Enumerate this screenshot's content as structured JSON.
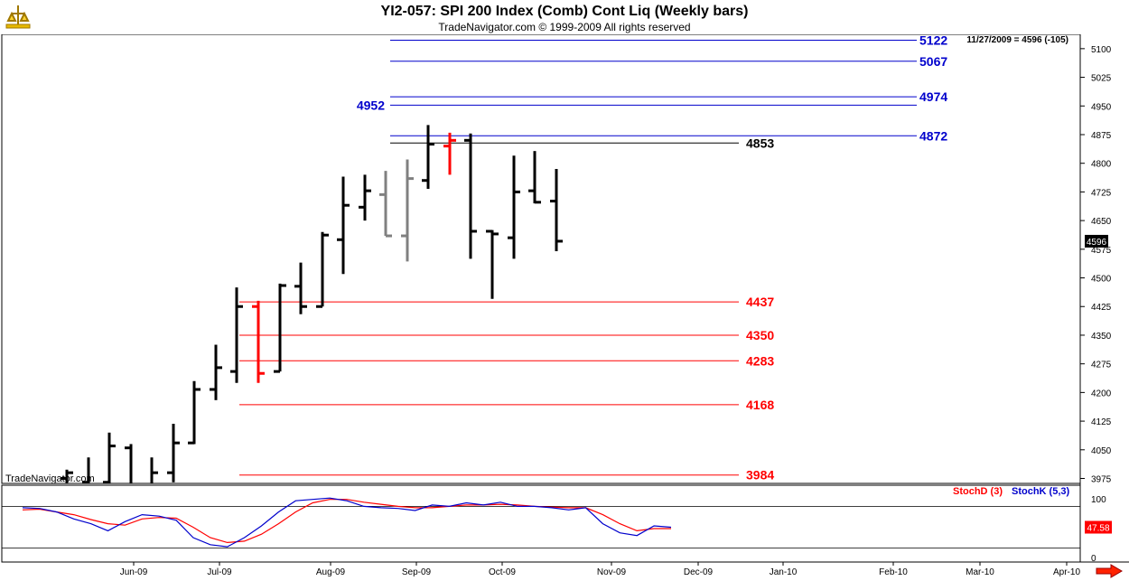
{
  "header": {
    "title": "YI2-057:  SPI 200 Index (Comb) Cont Liq  (Weekly bars)",
    "subtitle": "TradeNavigator.com © 1999-2009 All rights reserved"
  },
  "colors": {
    "up": "#000000",
    "gray": "#808080",
    "red": "#ff0000",
    "blue": "#0000cc",
    "green": "#00aa00"
  },
  "chart_data": {
    "type": "bar",
    "watermark": "TradeNavigator.com",
    "price_readout": "11/27/2009 = 4596 (-105)",
    "last_price_label": "4596",
    "y_ticks": [
      "5100",
      "5025",
      "4950",
      "4875",
      "4800",
      "4725",
      "4650",
      "4575",
      "4500",
      "4425",
      "4350",
      "4275",
      "4200",
      "4125",
      "4050",
      "3975"
    ],
    "x_labels": [
      "Jun-09",
      "Jul-09",
      "Aug-09",
      "Sep-09",
      "Oct-09",
      "Nov-09",
      "Dec-09",
      "Jan-10",
      "Feb-10",
      "Mar-10",
      "Apr-10"
    ],
    "bars": [
      {
        "high": 3998,
        "low": 3960,
        "open": 3975,
        "close": 3990,
        "color": "#000000"
      },
      {
        "high": 4030,
        "low": 3960,
        "open": 3965,
        "close": 3960,
        "color": "#000000"
      },
      {
        "high": 4095,
        "low": 3960,
        "open": 3965,
        "close": 4060,
        "color": "#000000"
      },
      {
        "high": 4065,
        "low": 3960,
        "open": 4055,
        "close": 3960,
        "color": "#000000"
      },
      {
        "high": 4030,
        "low": 3960,
        "open": 3960,
        "close": 3990,
        "color": "#000000"
      },
      {
        "high": 4118,
        "low": 3965,
        "open": 3990,
        "close": 4068,
        "color": "#000000"
      },
      {
        "high": 4230,
        "low": 4065,
        "open": 4068,
        "close": 4208,
        "color": "#000000"
      },
      {
        "high": 4325,
        "low": 4180,
        "open": 4208,
        "close": 4265,
        "color": "#000000"
      },
      {
        "high": 4475,
        "low": 4225,
        "open": 4255,
        "close": 4425,
        "color": "#000000"
      },
      {
        "high": 4440,
        "low": 4225,
        "open": 4425,
        "close": 4250,
        "color": "#ff0000"
      },
      {
        "high": 4485,
        "low": 4255,
        "open": 4255,
        "close": 4480,
        "color": "#000000"
      },
      {
        "high": 4540,
        "low": 4405,
        "open": 4478,
        "close": 4425,
        "color": "#000000"
      },
      {
        "high": 4620,
        "low": 4425,
        "open": 4425,
        "close": 4612,
        "color": "#000000"
      },
      {
        "high": 4765,
        "low": 4510,
        "open": 4600,
        "close": 4690,
        "color": "#000000"
      },
      {
        "high": 4770,
        "low": 4650,
        "open": 4685,
        "close": 4728,
        "color": "#000000"
      },
      {
        "high": 4780,
        "low": 4610,
        "open": 4718,
        "close": 4610,
        "color": "#808080"
      },
      {
        "high": 4810,
        "low": 4543,
        "open": 4610,
        "close": 4760,
        "color": "#808080"
      },
      {
        "high": 4900,
        "low": 4733,
        "open": 4755,
        "close": 4850,
        "color": "#000000"
      },
      {
        "high": 4880,
        "low": 4770,
        "open": 4845,
        "close": 4860,
        "color": "#ff0000"
      },
      {
        "high": 4878,
        "low": 4550,
        "open": 4860,
        "close": 4622,
        "color": "#000000"
      },
      {
        "high": 4625,
        "low": 4445,
        "open": 4622,
        "close": 4615,
        "color": "#000000"
      },
      {
        "high": 4820,
        "low": 4550,
        "open": 4605,
        "close": 4725,
        "color": "#000000"
      },
      {
        "high": 4832,
        "low": 4695,
        "open": 4728,
        "close": 4698,
        "color": "#000000"
      },
      {
        "high": 4785,
        "low": 4570,
        "open": 4701,
        "close": 4596,
        "color": "#000000"
      }
    ],
    "levels": [
      {
        "value": 5122,
        "label": "5122",
        "color": "#0000cc",
        "side": "right"
      },
      {
        "value": 5067,
        "label": "5067",
        "color": "#0000cc",
        "side": "right"
      },
      {
        "value": 4974,
        "label": "4974",
        "color": "#0000cc",
        "side": "right"
      },
      {
        "value": 4952,
        "label": "4952",
        "color": "#0000cc",
        "side": "left"
      },
      {
        "value": 4872,
        "label": "4872",
        "color": "#0000cc",
        "side": "right"
      },
      {
        "value": 4853,
        "label": "4853",
        "color": "#000000",
        "side": "mid"
      },
      {
        "value": 4437,
        "label": "4437",
        "color": "#ff0000",
        "side": "mid"
      },
      {
        "value": 4350,
        "label": "4350",
        "color": "#ff0000",
        "side": "mid"
      },
      {
        "value": 4283,
        "label": "4283",
        "color": "#ff0000",
        "side": "mid"
      },
      {
        "value": 4168,
        "label": "4168",
        "color": "#ff0000",
        "side": "mid"
      },
      {
        "value": 3984,
        "label": "3984",
        "color": "#ff0000",
        "side": "mid"
      }
    ],
    "stoch": {
      "legend": [
        {
          "name": "StochD (3)",
          "color": "#ff0000"
        },
        {
          "name": "StochK (5,3)",
          "color": "#0000cc"
        }
      ],
      "y_ticks": [
        "100",
        "0"
      ],
      "last_label": "47.58",
      "ref_levels": [
        80,
        20
      ],
      "K": [
        78,
        77,
        72,
        62,
        55,
        45,
        58,
        68,
        66,
        60,
        35,
        25,
        22,
        35,
        52,
        72,
        88,
        90,
        92,
        88,
        80,
        78,
        77,
        74,
        82,
        80,
        85,
        82,
        86,
        80,
        80,
        78,
        75,
        78,
        55,
        42,
        38,
        52,
        50
      ],
      "D": [
        75,
        76,
        72,
        68,
        61,
        55,
        53,
        62,
        64,
        63,
        50,
        35,
        28,
        30,
        40,
        55,
        72,
        85,
        90,
        90,
        86,
        83,
        80,
        78,
        78,
        80,
        82,
        82,
        83,
        82,
        80,
        79,
        78,
        78,
        68,
        55,
        45,
        48,
        48
      ]
    }
  }
}
